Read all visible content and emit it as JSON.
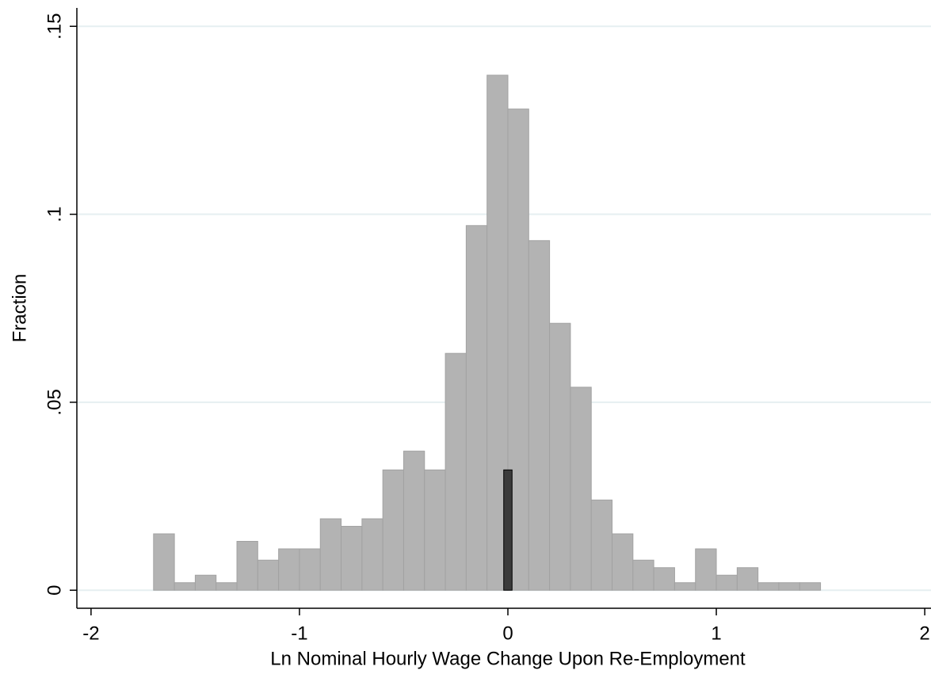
{
  "chart_data": {
    "type": "histogram",
    "x_label": "Ln Nominal Hourly Wage Change Upon Re-Employment",
    "y_label": "Fraction",
    "bins": [
      -1.7,
      -1.6,
      -1.5,
      -1.4,
      -1.3,
      -1.2,
      -1.1,
      -1.0,
      -0.9,
      -0.8,
      -0.7,
      -0.6,
      -0.5,
      -0.4,
      -0.3,
      -0.2,
      -0.1,
      0.0,
      0.1,
      0.2,
      0.3,
      0.4,
      0.5,
      0.6,
      0.7,
      0.8,
      0.9,
      1.0,
      1.1,
      1.2,
      1.3,
      1.4,
      1.5
    ],
    "values": [
      0.015,
      0.002,
      0.004,
      0.002,
      0.013,
      0.008,
      0.011,
      0.011,
      0.019,
      0.017,
      0.019,
      0.032,
      0.037,
      0.032,
      0.063,
      0.097,
      0.137,
      0.128,
      0.093,
      0.071,
      0.054,
      0.024,
      0.015,
      0.008,
      0.006,
      0.002,
      0.011,
      0.004,
      0.006,
      0.002,
      0.002,
      0.002
    ],
    "color": "#b3b3b3",
    "highlight": {
      "bins": [
        -0.02,
        0.02
      ],
      "values": [
        0.032
      ],
      "color": "#3a3a3a"
    },
    "xlim": [
      -2.068,
      2.03
    ],
    "ylim": [
      -0.0048,
      0.157
    ],
    "xticks": [
      -2,
      -1,
      0,
      1,
      2
    ],
    "yticks": [
      0,
      {
        "value": 0.05,
        "label": ".05"
      },
      {
        "value": 0.1,
        "label": ".1"
      },
      {
        "value": 0.15,
        "label": ".15"
      }
    ],
    "grid": true
  }
}
